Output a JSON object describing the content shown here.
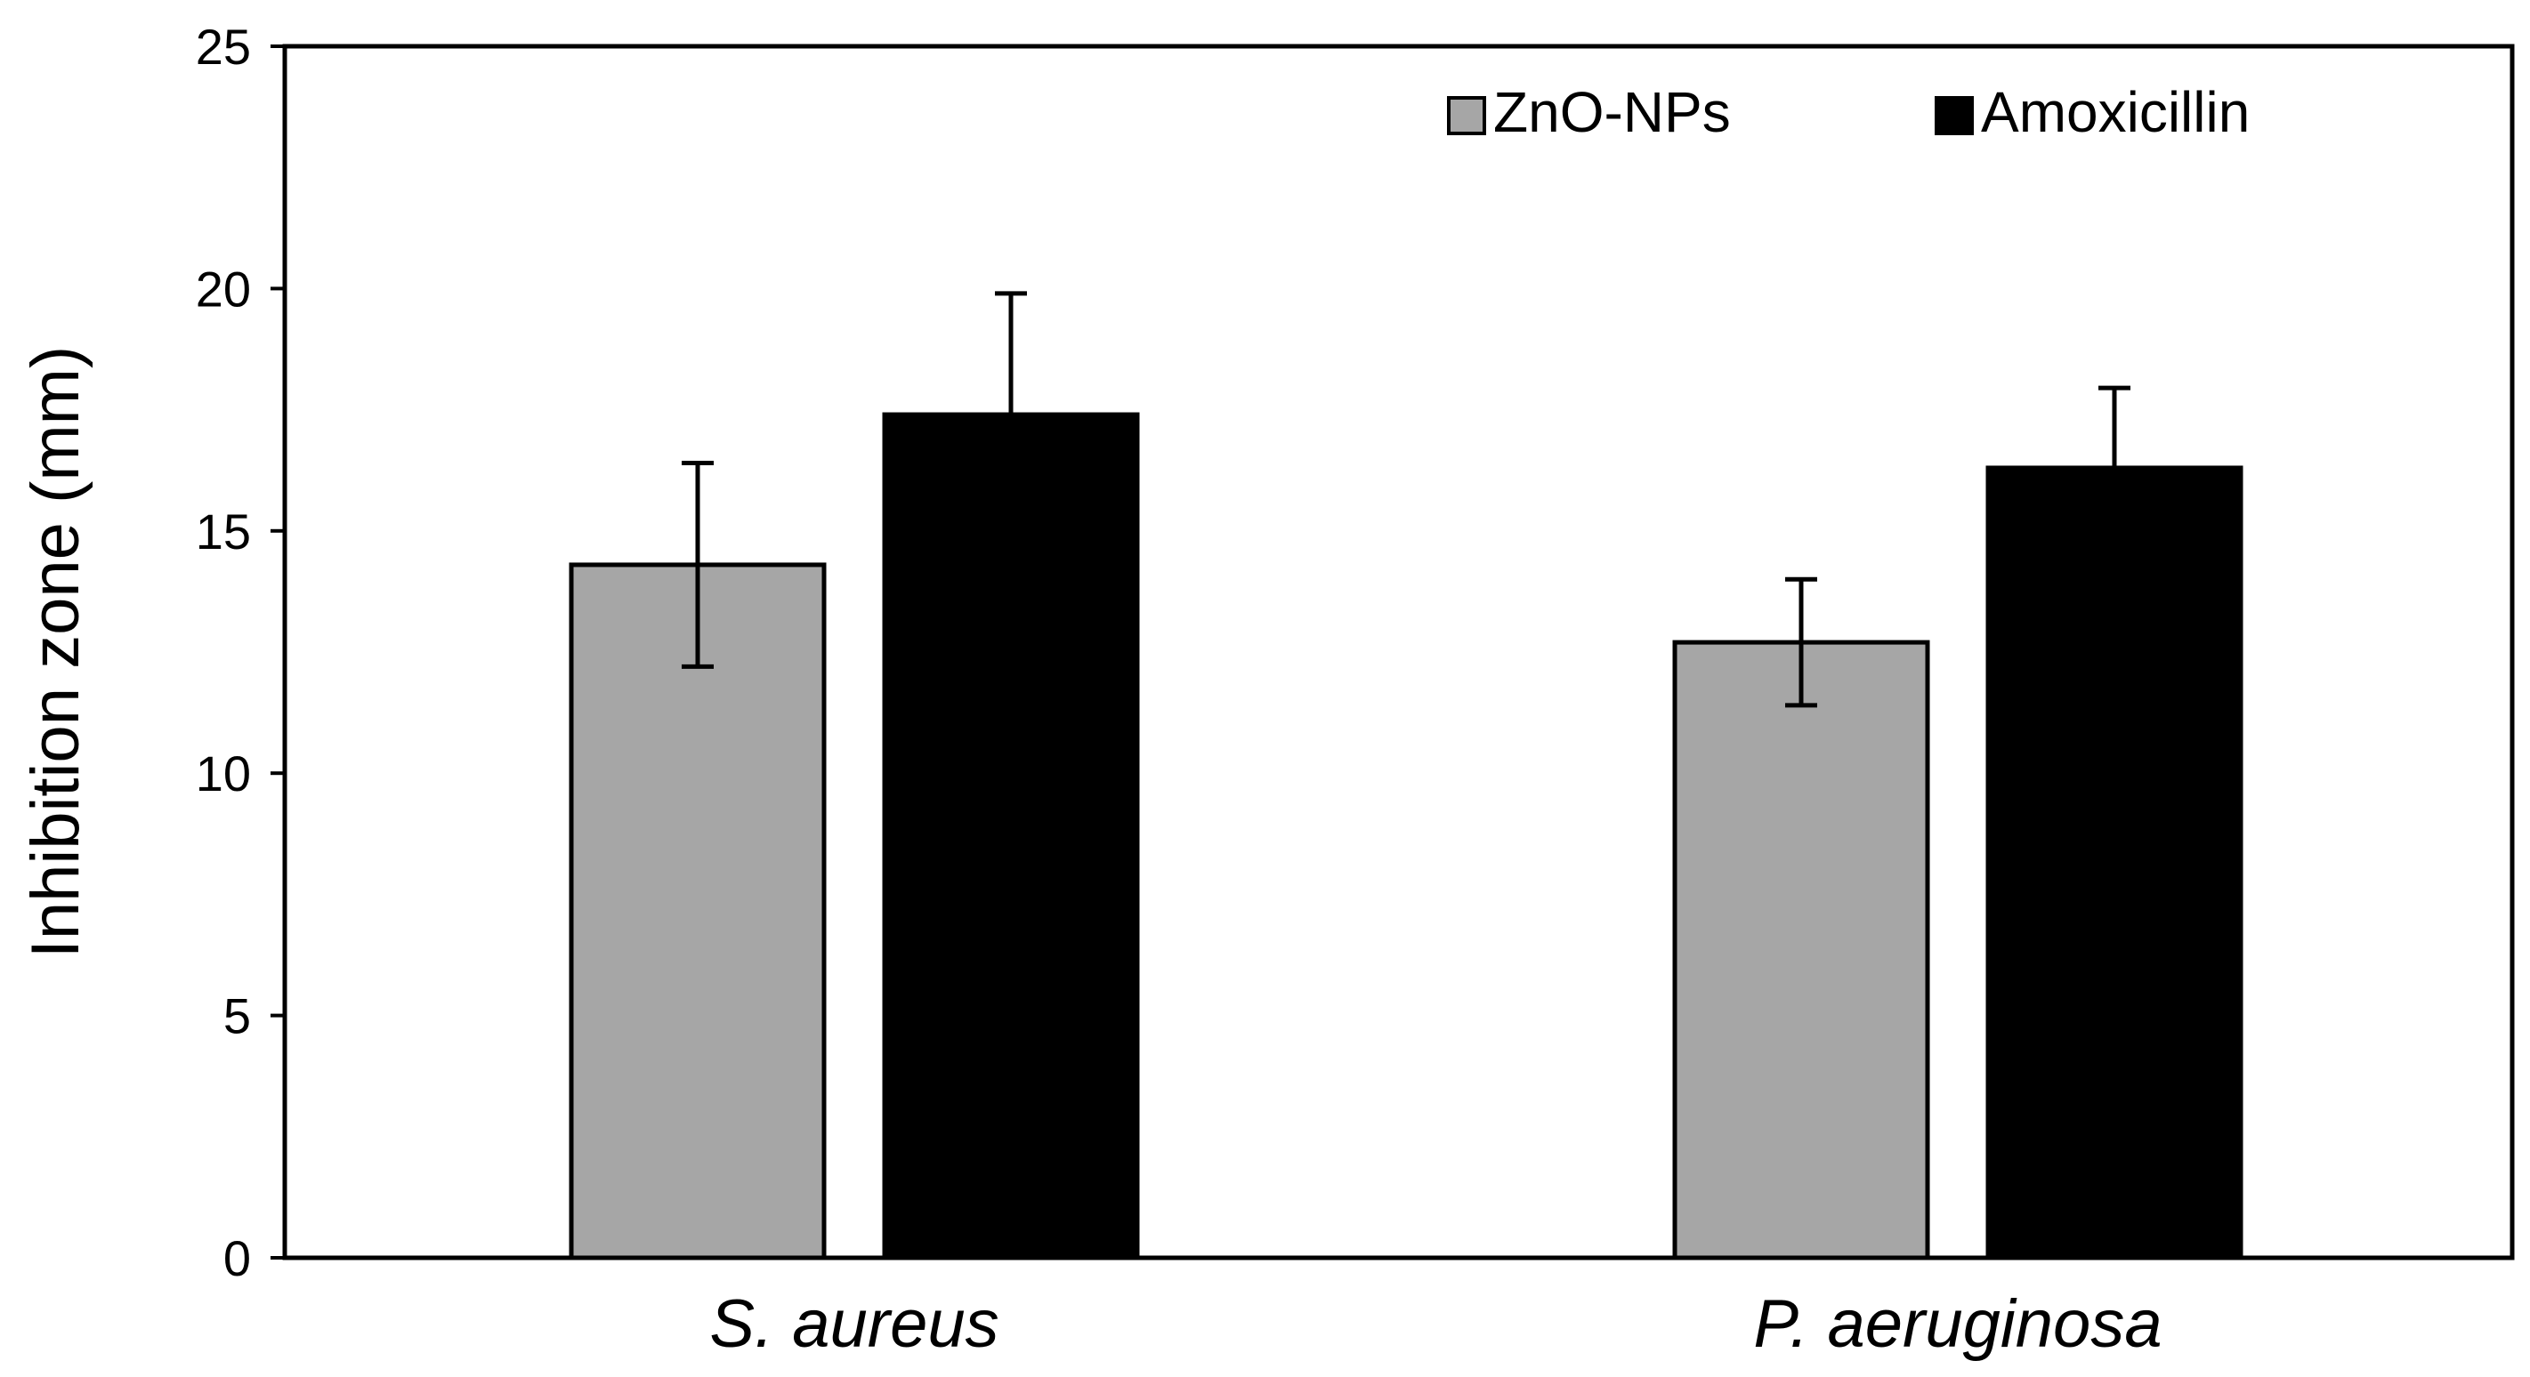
{
  "chart_data": {
    "type": "bar",
    "title": "",
    "xlabel": "",
    "ylabel": "Inhibition zone (mm)",
    "categories": [
      "S. aureus",
      "P. aeruginosa"
    ],
    "series": [
      {
        "name": "ZnO-NPs",
        "color": "#a6a6a6",
        "values": [
          14.3,
          12.7
        ],
        "errors": [
          2.1,
          1.3
        ]
      },
      {
        "name": "Amoxicillin",
        "color": "#000000",
        "values": [
          17.4,
          16.3
        ],
        "errors": [
          2.5,
          1.65
        ]
      }
    ],
    "ylim": [
      0,
      25
    ],
    "yticks": [
      0,
      5,
      10,
      15,
      20,
      25
    ],
    "grid": false,
    "legend_position": "top-right"
  }
}
